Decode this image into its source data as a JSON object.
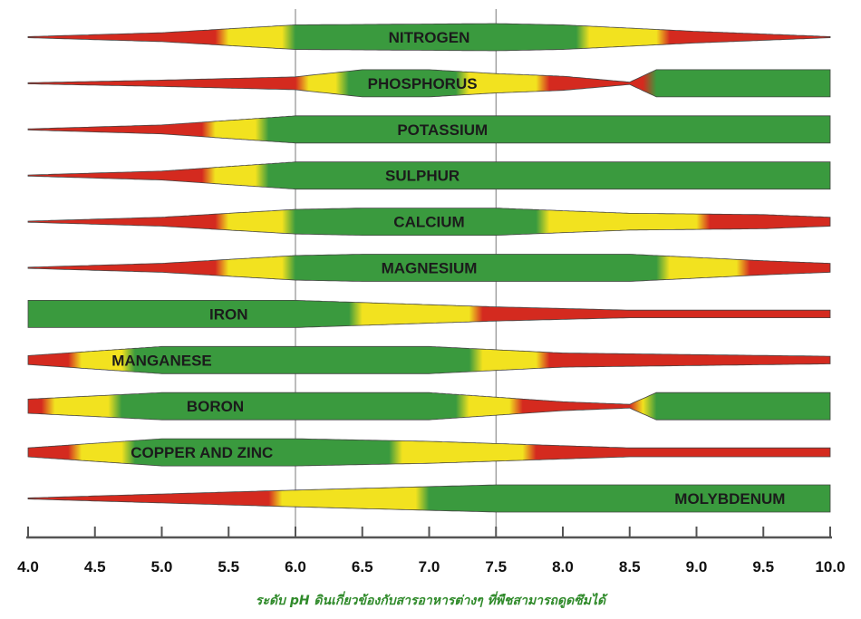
{
  "chart_data": {
    "type": "area",
    "title": "",
    "xlabel": "ระดับ pH ดินเกี่ยวข้องกับสารอาหารต่างๆ ที่พืชสามารถดูดซึมได้",
    "ylabel": "",
    "xlim": [
      4.0,
      10.0
    ],
    "x_ticks": [
      "4.0",
      "4.5",
      "5.0",
      "5.5",
      "6.0",
      "6.5",
      "7.0",
      "7.5",
      "8.0",
      "8.5",
      "9.0",
      "9.5",
      "10.0"
    ],
    "reference_lines": [
      6.0,
      7.5
    ],
    "colors": {
      "high": "#3a9a3e",
      "medium": "#f2e21f",
      "low": "#d42a1f"
    },
    "series": [
      {
        "name": "NITROGEN",
        "availability": [
          [
            4.0,
            0.0
          ],
          [
            5.0,
            0.3
          ],
          [
            6.0,
            0.9
          ],
          [
            7.5,
            1.0
          ],
          [
            8.0,
            0.9
          ],
          [
            9.0,
            0.4
          ],
          [
            10.0,
            0.0
          ]
        ],
        "label_ph": 7.0
      },
      {
        "name": "PHOSPHORUS",
        "availability": [
          [
            4.0,
            0.0
          ],
          [
            5.0,
            0.2
          ],
          [
            6.0,
            0.45
          ],
          [
            6.5,
            1.0
          ],
          [
            7.0,
            1.0
          ],
          [
            7.5,
            0.7
          ],
          [
            8.0,
            0.5
          ],
          [
            8.5,
            0.05
          ],
          [
            8.7,
            1.0
          ],
          [
            10.0,
            1.0
          ]
        ],
        "label_ph": 6.95
      },
      {
        "name": "POTASSIUM",
        "availability": [
          [
            4.0,
            0.0
          ],
          [
            5.0,
            0.3
          ],
          [
            6.0,
            1.0
          ],
          [
            10.0,
            1.0
          ]
        ],
        "label_ph": 7.1
      },
      {
        "name": "SULPHUR",
        "availability": [
          [
            4.0,
            0.0
          ],
          [
            5.0,
            0.3
          ],
          [
            6.0,
            1.0
          ],
          [
            10.0,
            1.0
          ]
        ],
        "label_ph": 6.95
      },
      {
        "name": "CALCIUM",
        "availability": [
          [
            4.0,
            0.0
          ],
          [
            5.0,
            0.3
          ],
          [
            6.0,
            0.9
          ],
          [
            6.5,
            1.0
          ],
          [
            7.5,
            1.0
          ],
          [
            8.0,
            0.8
          ],
          [
            8.5,
            0.6
          ],
          [
            9.5,
            0.5
          ],
          [
            10.0,
            0.3
          ]
        ],
        "label_ph": 7.0
      },
      {
        "name": "MAGNESIUM",
        "availability": [
          [
            4.0,
            0.0
          ],
          [
            5.0,
            0.3
          ],
          [
            6.0,
            0.9
          ],
          [
            6.5,
            1.0
          ],
          [
            8.5,
            1.0
          ],
          [
            9.5,
            0.5
          ],
          [
            10.0,
            0.3
          ]
        ],
        "label_ph": 7.0
      },
      {
        "name": "IRON",
        "availability": [
          [
            4.0,
            1.0
          ],
          [
            6.0,
            1.0
          ],
          [
            7.5,
            0.5
          ],
          [
            8.5,
            0.25
          ],
          [
            10.0,
            0.25
          ]
        ],
        "label_ph": 5.5
      },
      {
        "name": "MANGANESE",
        "availability": [
          [
            4.0,
            0.3
          ],
          [
            5.0,
            1.0
          ],
          [
            6.0,
            1.0
          ],
          [
            7.0,
            1.0
          ],
          [
            8.0,
            0.5
          ],
          [
            10.0,
            0.25
          ]
        ],
        "label_ph": 5.0
      },
      {
        "name": "BORON",
        "availability": [
          [
            4.0,
            0.5
          ],
          [
            5.0,
            1.0
          ],
          [
            6.0,
            1.0
          ],
          [
            7.0,
            1.0
          ],
          [
            8.0,
            0.3
          ],
          [
            8.5,
            0.1
          ],
          [
            8.7,
            1.0
          ],
          [
            10.0,
            1.0
          ]
        ],
        "label_ph": 5.4
      },
      {
        "name": "COPPER AND ZINC",
        "availability": [
          [
            4.0,
            0.3
          ],
          [
            5.0,
            1.0
          ],
          [
            6.0,
            1.0
          ],
          [
            7.0,
            0.8
          ],
          [
            8.5,
            0.3
          ],
          [
            10.0,
            0.3
          ]
        ],
        "label_ph": 5.3
      },
      {
        "name": "MOLYBDENUM",
        "availability": [
          [
            4.0,
            0.0
          ],
          [
            5.0,
            0.3
          ],
          [
            6.0,
            0.6
          ],
          [
            7.5,
            1.0
          ],
          [
            10.0,
            1.0
          ]
        ],
        "label_ph": 9.25
      }
    ]
  }
}
